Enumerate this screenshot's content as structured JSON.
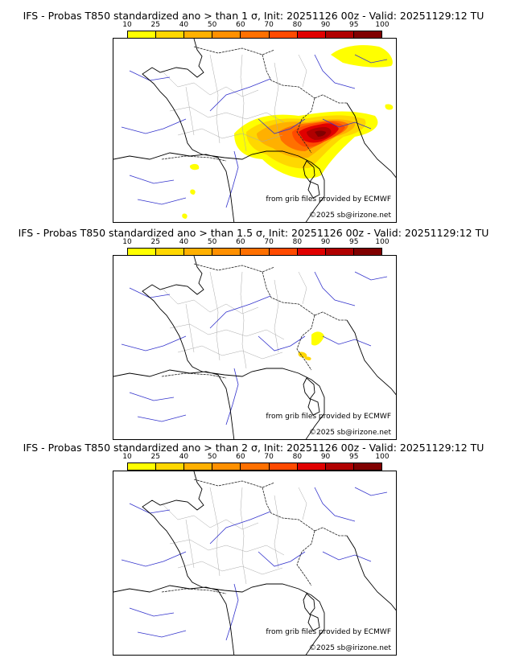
{
  "panels": [
    {
      "title": "IFS - Probas T850  standardized ano > than 1 σ, Init: 20251126 00z - Valid: 20251129:12 TU",
      "threshold": "1 σ",
      "anomaly_blobs": [
        {
          "prob": 10
        },
        {
          "prob": 25
        },
        {
          "prob": 40
        },
        {
          "prob": 60
        },
        {
          "prob": 70
        },
        {
          "prob": 80
        },
        {
          "prob": 90
        },
        {
          "prob": 95
        }
      ]
    },
    {
      "title": "IFS - Probas T850  standardized ano > than 1.5 σ, Init: 20251126 00z - Valid: 20251129:12 TU",
      "threshold": "1.5 σ",
      "anomaly_blobs": [
        {
          "prob": 10
        },
        {
          "prob": 25
        }
      ]
    },
    {
      "title": "IFS - Probas T850  standardized ano > than 2 σ, Init: 20251126 00z - Valid: 20251129:12 TU",
      "threshold": "2 σ",
      "anomaly_blobs": []
    }
  ],
  "colorbar": {
    "ticks": [
      "10",
      "25",
      "40",
      "50",
      "60",
      "70",
      "80",
      "90",
      "95",
      "100"
    ],
    "colors": [
      "#ffff00",
      "#ffd700",
      "#ffb000",
      "#ff9000",
      "#ff7000",
      "#ff4a00",
      "#e00000",
      "#b00000",
      "#800000"
    ]
  },
  "credits": {
    "source": "from grib files provided by ECMWF",
    "copyright": "©2025 sb@irizone.net"
  }
}
